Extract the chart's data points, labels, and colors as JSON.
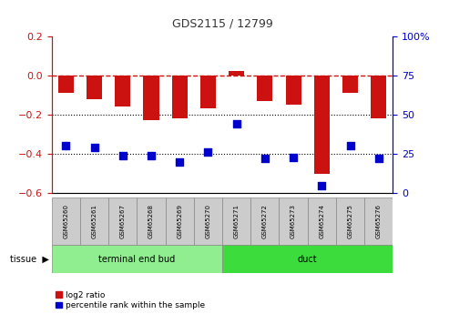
{
  "title": "GDS2115 / 12799",
  "samples": [
    "GSM65260",
    "GSM65261",
    "GSM65267",
    "GSM65268",
    "GSM65269",
    "GSM65270",
    "GSM65271",
    "GSM65272",
    "GSM65273",
    "GSM65274",
    "GSM65275",
    "GSM65276"
  ],
  "log2_ratio": [
    -0.09,
    -0.12,
    -0.16,
    -0.23,
    -0.22,
    -0.17,
    0.02,
    -0.13,
    -0.15,
    -0.5,
    -0.09,
    -0.22
  ],
  "percentile_rank": [
    30,
    29,
    24,
    24,
    20,
    26,
    44,
    22,
    23,
    5,
    30,
    22
  ],
  "groups": [
    {
      "label": "terminal end bud",
      "start": 0,
      "end": 6,
      "color": "#90EE90"
    },
    {
      "label": "duct",
      "start": 6,
      "end": 12,
      "color": "#3DDC3D"
    }
  ],
  "ylim_left": [
    -0.6,
    0.2
  ],
  "ylim_right": [
    0,
    100
  ],
  "left_ticks": [
    0.2,
    0.0,
    -0.2,
    -0.4,
    -0.6
  ],
  "right_ticks": [
    100,
    75,
    50,
    25,
    0
  ],
  "bar_color": "#CC1111",
  "dot_color": "#0000CC",
  "ref_line_color": "#CC1111",
  "grid_color": "#000000",
  "bg_color": "#FFFFFF",
  "bar_width": 0.55,
  "dot_size": 28,
  "legend_red_label": "log2 ratio",
  "legend_blue_label": "percentile rank within the sample",
  "tissue_label": "tissue",
  "right_axis_color": "#0000CC",
  "left_axis_color": "#CC1111",
  "sample_box_color": "#CCCCCC"
}
